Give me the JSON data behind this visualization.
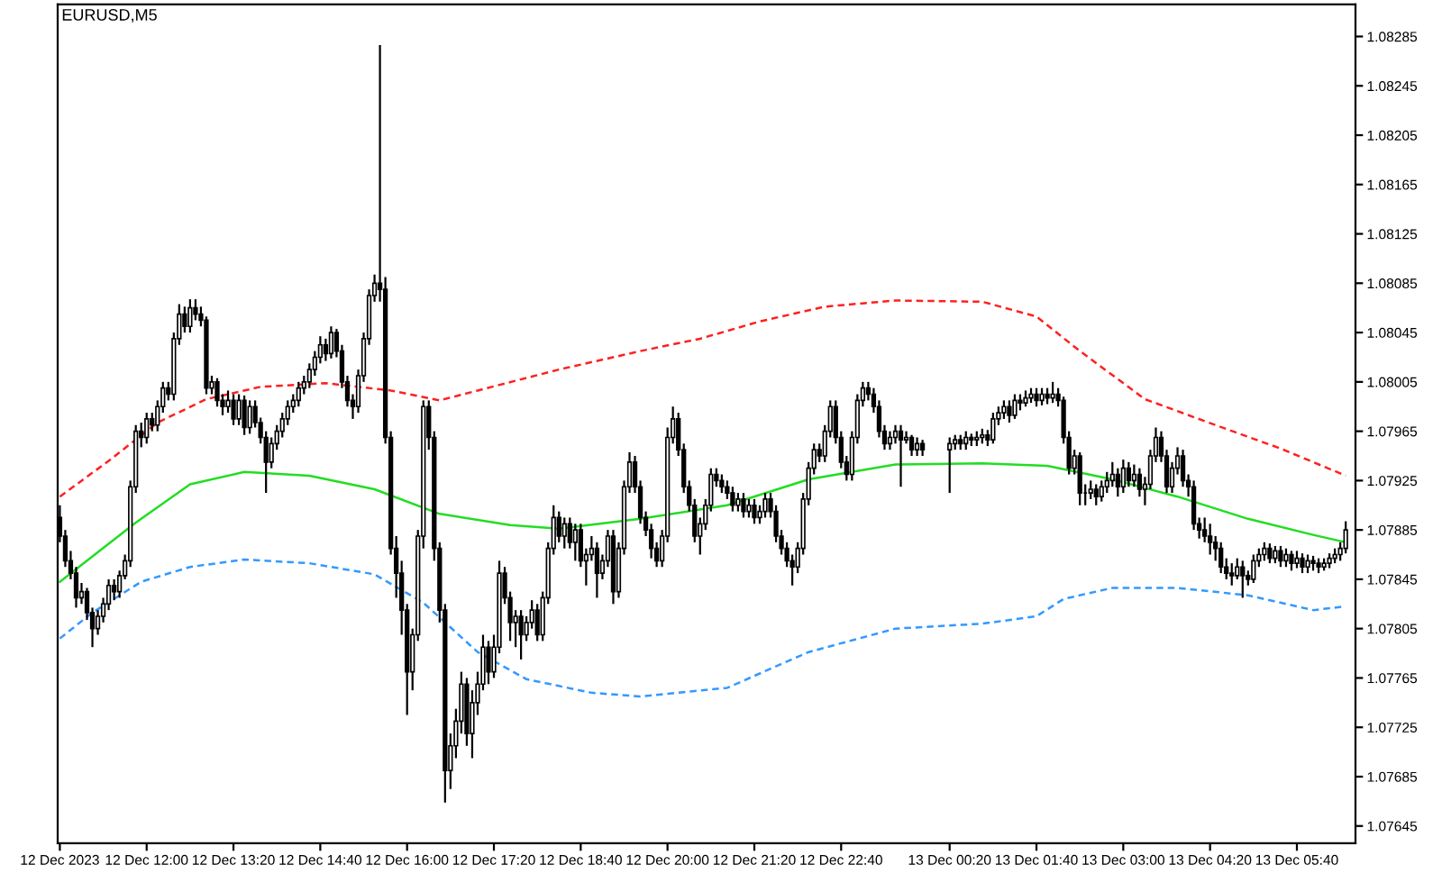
{
  "chart_data": {
    "type": "candlestick",
    "title": "EURUSD,M5",
    "x": [
      "2023-12-12T10:40",
      "2023-12-12T10:45",
      "2023-12-12T10:50",
      "2023-12-12T10:55",
      "2023-12-12T11:00",
      "2023-12-12T11:05",
      "2023-12-12T11:10",
      "2023-12-12T11:15",
      "2023-12-12T11:20",
      "2023-12-12T11:25",
      "2023-12-12T11:30",
      "2023-12-12T11:35",
      "2023-12-12T11:40",
      "2023-12-12T11:45",
      "2023-12-12T11:50",
      "2023-12-12T11:55",
      "2023-12-12T12:00",
      "2023-12-12T12:05",
      "2023-12-12T12:10",
      "2023-12-12T12:15",
      "2023-12-12T12:20",
      "2023-12-12T12:25",
      "2023-12-12T12:30",
      "2023-12-12T12:35",
      "2023-12-12T12:40",
      "2023-12-12T12:45",
      "2023-12-12T12:50",
      "2023-12-12T12:55",
      "2023-12-12T13:00",
      "2023-12-12T13:05",
      "2023-12-12T13:10",
      "2023-12-12T13:15",
      "2023-12-12T13:20",
      "2023-12-12T13:25",
      "2023-12-12T13:30",
      "2023-12-12T13:35",
      "2023-12-12T13:40",
      "2023-12-12T13:45",
      "2023-12-12T13:50",
      "2023-12-12T13:55",
      "2023-12-12T14:00",
      "2023-12-12T14:05",
      "2023-12-12T14:10",
      "2023-12-12T14:15",
      "2023-12-12T14:20",
      "2023-12-12T14:25",
      "2023-12-12T14:30",
      "2023-12-12T14:35",
      "2023-12-12T14:40",
      "2023-12-12T14:45",
      "2023-12-12T14:50",
      "2023-12-12T14:55",
      "2023-12-12T15:00",
      "2023-12-12T15:05",
      "2023-12-12T15:10",
      "2023-12-12T15:15",
      "2023-12-12T15:20",
      "2023-12-12T15:25",
      "2023-12-12T15:30",
      "2023-12-12T15:35",
      "2023-12-12T15:40",
      "2023-12-12T15:45",
      "2023-12-12T15:50",
      "2023-12-12T15:55",
      "2023-12-12T16:00",
      "2023-12-12T16:05",
      "2023-12-12T16:10",
      "2023-12-12T16:15",
      "2023-12-12T16:20",
      "2023-12-12T16:25",
      "2023-12-12T16:30",
      "2023-12-12T16:35",
      "2023-12-12T16:40",
      "2023-12-12T16:45",
      "2023-12-12T16:50",
      "2023-12-12T16:55",
      "2023-12-12T17:00",
      "2023-12-12T17:05",
      "2023-12-12T17:10",
      "2023-12-12T17:15",
      "2023-12-12T17:20",
      "2023-12-12T17:25",
      "2023-12-12T17:30",
      "2023-12-12T17:35",
      "2023-12-12T17:40",
      "2023-12-12T17:45",
      "2023-12-12T17:50",
      "2023-12-12T17:55",
      "2023-12-12T18:00",
      "2023-12-12T18:05",
      "2023-12-12T18:10",
      "2023-12-12T18:15",
      "2023-12-12T18:20",
      "2023-12-12T18:25",
      "2023-12-12T18:30",
      "2023-12-12T18:35",
      "2023-12-12T18:40",
      "2023-12-12T18:45",
      "2023-12-12T18:50",
      "2023-12-12T18:55",
      "2023-12-12T19:00",
      "2023-12-12T19:05",
      "2023-12-12T19:10",
      "2023-12-12T19:15",
      "2023-12-12T19:20",
      "2023-12-12T19:25",
      "2023-12-12T19:30",
      "2023-12-12T19:35",
      "2023-12-12T19:40",
      "2023-12-12T19:45",
      "2023-12-12T19:50",
      "2023-12-12T19:55",
      "2023-12-12T20:00",
      "2023-12-12T20:05",
      "2023-12-12T20:10",
      "2023-12-12T20:15",
      "2023-12-12T20:20",
      "2023-12-12T20:25",
      "2023-12-12T20:30",
      "2023-12-12T20:35",
      "2023-12-12T20:40",
      "2023-12-12T20:45",
      "2023-12-12T20:50",
      "2023-12-12T20:55",
      "2023-12-12T21:00",
      "2023-12-12T21:05",
      "2023-12-12T21:10",
      "2023-12-12T21:15",
      "2023-12-12T21:20",
      "2023-12-12T21:25",
      "2023-12-12T21:30",
      "2023-12-12T21:35",
      "2023-12-12T21:40",
      "2023-12-12T21:45",
      "2023-12-12T21:50",
      "2023-12-12T21:55",
      "2023-12-12T22:00",
      "2023-12-12T22:05",
      "2023-12-12T22:10",
      "2023-12-12T22:15",
      "2023-12-12T22:20",
      "2023-12-12T22:25",
      "2023-12-12T22:30",
      "2023-12-12T22:35",
      "2023-12-12T22:40",
      "2023-12-12T22:45",
      "2023-12-12T22:50",
      "2023-12-12T22:55",
      "2023-12-12T23:00",
      "2023-12-12T23:05",
      "2023-12-12T23:10",
      "2023-12-12T23:15",
      "2023-12-12T23:20",
      "2023-12-12T23:25",
      "2023-12-12T23:30",
      "2023-12-12T23:35",
      "2023-12-12T23:40",
      "2023-12-12T23:45",
      "2023-12-12T23:50",
      "2023-12-12T23:55",
      "2023-12-13T00:20",
      "2023-12-13T00:25",
      "2023-12-13T00:30",
      "2023-12-13T00:35",
      "2023-12-13T00:40",
      "2023-12-13T00:45",
      "2023-12-13T00:50",
      "2023-12-13T00:55",
      "2023-12-13T01:00",
      "2023-12-13T01:05",
      "2023-12-13T01:10",
      "2023-12-13T01:15",
      "2023-12-13T01:20",
      "2023-12-13T01:25",
      "2023-12-13T01:30",
      "2023-12-13T01:35",
      "2023-12-13T01:40",
      "2023-12-13T01:45",
      "2023-12-13T01:50",
      "2023-12-13T01:55",
      "2023-12-13T02:00",
      "2023-12-13T02:05",
      "2023-12-13T02:10",
      "2023-12-13T02:15",
      "2023-12-13T02:20",
      "2023-12-13T02:25",
      "2023-12-13T02:30",
      "2023-12-13T02:35",
      "2023-12-13T02:40",
      "2023-12-13T02:45",
      "2023-12-13T02:50",
      "2023-12-13T02:55",
      "2023-12-13T03:00",
      "2023-12-13T03:05",
      "2023-12-13T03:10",
      "2023-12-13T03:15",
      "2023-12-13T03:20",
      "2023-12-13T03:25",
      "2023-12-13T03:30",
      "2023-12-13T03:35",
      "2023-12-13T03:40",
      "2023-12-13T03:45",
      "2023-12-13T03:50",
      "2023-12-13T03:55",
      "2023-12-13T04:00",
      "2023-12-13T04:05",
      "2023-12-13T04:10",
      "2023-12-13T04:15",
      "2023-12-13T04:20",
      "2023-12-13T04:25",
      "2023-12-13T04:30",
      "2023-12-13T04:35",
      "2023-12-13T04:40",
      "2023-12-13T04:45",
      "2023-12-13T04:50",
      "2023-12-13T04:55",
      "2023-12-13T05:00",
      "2023-12-13T05:05",
      "2023-12-13T05:10",
      "2023-12-13T05:15",
      "2023-12-13T05:20",
      "2023-12-13T05:25",
      "2023-12-13T05:30",
      "2023-12-13T05:35",
      "2023-12-13T05:40",
      "2023-12-13T05:45",
      "2023-12-13T05:50",
      "2023-12-13T05:55",
      "2023-12-13T06:00",
      "2023-12-13T06:05",
      "2023-12-13T06:10",
      "2023-12-13T06:15",
      "2023-12-13T06:20",
      "2023-12-13T06:25"
    ],
    "ohlc": [
      [
        1.07895,
        1.07905,
        1.07875,
        1.0788
      ],
      [
        1.0788,
        1.07885,
        1.07855,
        1.0786
      ],
      [
        1.0786,
        1.07868,
        1.07845,
        1.0785
      ],
      [
        1.0785,
        1.07855,
        1.07822,
        1.0783
      ],
      [
        1.0783,
        1.07842,
        1.07825,
        1.07835
      ],
      [
        1.07835,
        1.07838,
        1.07812,
        1.07818
      ],
      [
        1.07818,
        1.07822,
        1.0779,
        1.07805
      ],
      [
        1.07805,
        1.0782,
        1.078,
        1.07815
      ],
      [
        1.07815,
        1.0783,
        1.0781,
        1.07825
      ],
      [
        1.07825,
        1.07845,
        1.0782,
        1.0784
      ],
      [
        1.0784,
        1.07845,
        1.07828,
        1.07835
      ],
      [
        1.07835,
        1.07852,
        1.0783,
        1.07848
      ],
      [
        1.07848,
        1.07865,
        1.07845,
        1.0786
      ],
      [
        1.0786,
        1.07925,
        1.07855,
        1.0792
      ],
      [
        1.0792,
        1.0797,
        1.07915,
        1.07965
      ],
      [
        1.07965,
        1.07972,
        1.07952,
        1.0796
      ],
      [
        1.0796,
        1.0798,
        1.07955,
        1.07975
      ],
      [
        1.07975,
        1.0798,
        1.07965,
        1.0797
      ],
      [
        1.0797,
        1.0799,
        1.07965,
        1.07985
      ],
      [
        1.07985,
        1.08005,
        1.0798,
        1.08
      ],
      [
        1.08,
        1.08005,
        1.0799,
        1.07995
      ],
      [
        1.07995,
        1.08045,
        1.0799,
        1.0804
      ],
      [
        1.0804,
        1.08068,
        1.08035,
        1.0806
      ],
      [
        1.0806,
        1.08066,
        1.08045,
        1.0805
      ],
      [
        1.0805,
        1.08072,
        1.08045,
        1.08065
      ],
      [
        1.08065,
        1.08072,
        1.08055,
        1.0806
      ],
      [
        1.0806,
        1.08066,
        1.0805,
        1.08055
      ],
      [
        1.08055,
        1.08058,
        1.07995,
        1.08
      ],
      [
        1.08,
        1.0801,
        1.07995,
        1.08005
      ],
      [
        1.08005,
        1.08008,
        1.07985,
        1.0799
      ],
      [
        1.0799,
        1.07995,
        1.07978,
        1.07985
      ],
      [
        1.07985,
        1.07998,
        1.0798,
        1.0799
      ],
      [
        1.0799,
        1.07995,
        1.0797,
        1.07975
      ],
      [
        1.07975,
        1.07995,
        1.0797,
        1.0799
      ],
      [
        1.0799,
        1.07994,
        1.07962,
        1.07968
      ],
      [
        1.07968,
        1.0799,
        1.07963,
        1.07985
      ],
      [
        1.07985,
        1.0799,
        1.07968,
        1.07972
      ],
      [
        1.07972,
        1.07976,
        1.07955,
        1.0796
      ],
      [
        1.0796,
        1.07965,
        1.07915,
        1.0794
      ],
      [
        1.0794,
        1.0796,
        1.07935,
        1.07955
      ],
      [
        1.07955,
        1.0797,
        1.0795,
        1.07965
      ],
      [
        1.07965,
        1.0798,
        1.0796,
        1.07975
      ],
      [
        1.07975,
        1.0799,
        1.0797,
        1.07985
      ],
      [
        1.07985,
        1.07995,
        1.0798,
        1.0799
      ],
      [
        1.0799,
        1.08005,
        1.07985,
        1.08
      ],
      [
        1.08,
        1.0801,
        1.07995,
        1.08005
      ],
      [
        1.08005,
        1.0802,
        1.08,
        1.08015
      ],
      [
        1.08015,
        1.0803,
        1.0801,
        1.08025
      ],
      [
        1.08025,
        1.08042,
        1.0802,
        1.08035
      ],
      [
        1.08035,
        1.0804,
        1.08022,
        1.08028
      ],
      [
        1.08028,
        1.0805,
        1.08024,
        1.08045
      ],
      [
        1.08045,
        1.08048,
        1.08025,
        1.0803
      ],
      [
        1.0803,
        1.08035,
        1.08,
        1.08005
      ],
      [
        1.08005,
        1.0801,
        1.07985,
        1.0799
      ],
      [
        1.0799,
        1.07995,
        1.07975,
        1.07985
      ],
      [
        1.07985,
        1.08015,
        1.0798,
        1.0801
      ],
      [
        1.0801,
        1.08045,
        1.08005,
        1.0804
      ],
      [
        1.0804,
        1.0808,
        1.08035,
        1.08075
      ],
      [
        1.08075,
        1.08092,
        1.0807,
        1.08085
      ],
      [
        1.08085,
        1.08278,
        1.0807,
        1.0808
      ],
      [
        1.0808,
        1.0809,
        1.07955,
        1.0796
      ],
      [
        1.0796,
        1.07965,
        1.07865,
        1.0787
      ],
      [
        1.0787,
        1.0788,
        1.0783,
        1.0785
      ],
      [
        1.0785,
        1.0786,
        1.078,
        1.0782
      ],
      [
        1.0782,
        1.07825,
        1.07735,
        1.0777
      ],
      [
        1.0777,
        1.07805,
        1.07755,
        1.078
      ],
      [
        1.078,
        1.07885,
        1.07795,
        1.0788
      ],
      [
        1.0788,
        1.0799,
        1.0787,
        1.07985
      ],
      [
        1.07985,
        1.0799,
        1.0795,
        1.0796
      ],
      [
        1.0796,
        1.07965,
        1.0786,
        1.0787
      ],
      [
        1.0787,
        1.07875,
        1.0781,
        1.0782
      ],
      [
        1.0782,
        1.07825,
        1.07664,
        1.0769
      ],
      [
        1.0769,
        1.0772,
        1.07675,
        1.0771
      ],
      [
        1.0771,
        1.0774,
        1.077,
        1.0773
      ],
      [
        1.0773,
        1.0777,
        1.0772,
        1.0776
      ],
      [
        1.0776,
        1.07765,
        1.0771,
        1.0772
      ],
      [
        1.0772,
        1.07755,
        1.077,
        1.07745
      ],
      [
        1.07745,
        1.0777,
        1.07735,
        1.0776
      ],
      [
        1.0776,
        1.078,
        1.07755,
        1.0779
      ],
      [
        1.0779,
        1.07795,
        1.0776,
        1.0777
      ],
      [
        1.0777,
        1.078,
        1.07765,
        1.0779
      ],
      [
        1.0779,
        1.0786,
        1.07785,
        1.0785
      ],
      [
        1.0785,
        1.07855,
        1.07825,
        1.0783
      ],
      [
        1.0783,
        1.07835,
        1.07795,
        1.0781
      ],
      [
        1.0781,
        1.0782,
        1.0779,
        1.07815
      ],
      [
        1.07815,
        1.0782,
        1.0778,
        1.078
      ],
      [
        1.078,
        1.07815,
        1.07795,
        1.0781
      ],
      [
        1.0781,
        1.07828,
        1.07805,
        1.0782
      ],
      [
        1.0782,
        1.07825,
        1.07795,
        1.078
      ],
      [
        1.078,
        1.07835,
        1.07795,
        1.0783
      ],
      [
        1.0783,
        1.07875,
        1.07825,
        1.0787
      ],
      [
        1.0787,
        1.07905,
        1.07865,
        1.07895
      ],
      [
        1.07895,
        1.079,
        1.07875,
        1.0788
      ],
      [
        1.0788,
        1.07895,
        1.0787,
        1.0789
      ],
      [
        1.0789,
        1.07895,
        1.0787,
        1.07875
      ],
      [
        1.07875,
        1.0789,
        1.0786,
        1.07885
      ],
      [
        1.07885,
        1.0789,
        1.07855,
        1.0786
      ],
      [
        1.0786,
        1.0787,
        1.0784,
        1.07865
      ],
      [
        1.07865,
        1.0788,
        1.0786,
        1.0787
      ],
      [
        1.0787,
        1.07875,
        1.0783,
        1.0785
      ],
      [
        1.0785,
        1.07865,
        1.07845,
        1.0786
      ],
      [
        1.0786,
        1.07885,
        1.07855,
        1.0788
      ],
      [
        1.0788,
        1.07885,
        1.07825,
        1.07835
      ],
      [
        1.07835,
        1.07875,
        1.0783,
        1.0787
      ],
      [
        1.0787,
        1.07925,
        1.07865,
        1.0792
      ],
      [
        1.0792,
        1.07948,
        1.07915,
        1.0794
      ],
      [
        1.0794,
        1.07945,
        1.07915,
        1.0792
      ],
      [
        1.0792,
        1.07925,
        1.0789,
        1.07895
      ],
      [
        1.07895,
        1.079,
        1.0788,
        1.07885
      ],
      [
        1.07885,
        1.0789,
        1.07862,
        1.0787
      ],
      [
        1.0787,
        1.07875,
        1.07855,
        1.0786
      ],
      [
        1.0786,
        1.07885,
        1.07855,
        1.0788
      ],
      [
        1.0788,
        1.07968,
        1.07875,
        1.0796
      ],
      [
        1.0796,
        1.07985,
        1.07955,
        1.07975
      ],
      [
        1.07975,
        1.0798,
        1.07945,
        1.0795
      ],
      [
        1.0795,
        1.07955,
        1.07915,
        1.0792
      ],
      [
        1.0792,
        1.07925,
        1.079,
        1.07905
      ],
      [
        1.07905,
        1.0791,
        1.07875,
        1.0788
      ],
      [
        1.0788,
        1.07895,
        1.07865,
        1.0789
      ],
      [
        1.0789,
        1.0791,
        1.07885,
        1.07905
      ],
      [
        1.07905,
        1.07935,
        1.079,
        1.0793
      ],
      [
        1.0793,
        1.07935,
        1.0792,
        1.07925
      ],
      [
        1.07925,
        1.0793,
        1.07915,
        1.0792
      ],
      [
        1.0792,
        1.07925,
        1.0791,
        1.07915
      ],
      [
        1.07915,
        1.0792,
        1.079,
        1.07905
      ],
      [
        1.07905,
        1.07915,
        1.079,
        1.0791
      ],
      [
        1.0791,
        1.07915,
        1.07895,
        1.079
      ],
      [
        1.079,
        1.0791,
        1.07895,
        1.07905
      ],
      [
        1.07905,
        1.0791,
        1.0789,
        1.07895
      ],
      [
        1.07895,
        1.07905,
        1.0789,
        1.079
      ],
      [
        1.079,
        1.07915,
        1.07895,
        1.0791
      ],
      [
        1.0791,
        1.07915,
        1.07895,
        1.079
      ],
      [
        1.079,
        1.07905,
        1.07875,
        1.0788
      ],
      [
        1.0788,
        1.07885,
        1.07865,
        1.0787
      ],
      [
        1.0787,
        1.07875,
        1.07855,
        1.0786
      ],
      [
        1.0786,
        1.07865,
        1.0784,
        1.07855
      ],
      [
        1.07855,
        1.07875,
        1.0785,
        1.0787
      ],
      [
        1.0787,
        1.07915,
        1.07865,
        1.0791
      ],
      [
        1.0791,
        1.0794,
        1.07905,
        1.07935
      ],
      [
        1.07935,
        1.07955,
        1.0793,
        1.0795
      ],
      [
        1.0795,
        1.07955,
        1.0794,
        1.07945
      ],
      [
        1.07945,
        1.0797,
        1.0794,
        1.07965
      ],
      [
        1.07965,
        1.0799,
        1.0796,
        1.07985
      ],
      [
        1.07985,
        1.0799,
        1.07955,
        1.0796
      ],
      [
        1.0796,
        1.07965,
        1.07935,
        1.0794
      ],
      [
        1.0794,
        1.07945,
        1.07925,
        1.0793
      ],
      [
        1.0793,
        1.07965,
        1.07925,
        1.0796
      ],
      [
        1.0796,
        1.07995,
        1.07955,
        1.0799
      ],
      [
        1.0799,
        1.08005,
        1.07985,
        1.08
      ],
      [
        1.08,
        1.08005,
        1.0799,
        1.07995
      ],
      [
        1.07995,
        1.08,
        1.0798,
        1.07985
      ],
      [
        1.07985,
        1.0799,
        1.0796,
        1.07965
      ],
      [
        1.07965,
        1.0797,
        1.0795,
        1.07955
      ],
      [
        1.07955,
        1.07965,
        1.0795,
        1.0796
      ],
      [
        1.0796,
        1.0797,
        1.07955,
        1.07965
      ],
      [
        1.07965,
        1.0797,
        1.0792,
        1.07958
      ],
      [
        1.07958,
        1.07965,
        1.07955,
        1.0796
      ],
      [
        1.0796,
        1.07962,
        1.07945,
        1.0795
      ],
      [
        1.0795,
        1.0796,
        1.07945,
        1.07955
      ],
      [
        1.07955,
        1.07958,
        1.07945,
        1.0795
      ],
      [
        1.0795,
        1.0796,
        1.07915,
        1.07955
      ],
      [
        1.07955,
        1.07962,
        1.0795,
        1.07958
      ],
      [
        1.07958,
        1.07962,
        1.0795,
        1.07955
      ],
      [
        1.07955,
        1.07965,
        1.0795,
        1.0796
      ],
      [
        1.0796,
        1.07963,
        1.07953,
        1.07958
      ],
      [
        1.07958,
        1.07965,
        1.07953,
        1.0796
      ],
      [
        1.0796,
        1.07967,
        1.07955,
        1.07962
      ],
      [
        1.07962,
        1.07966,
        1.07953,
        1.07958
      ],
      [
        1.07958,
        1.0798,
        1.07955,
        1.07975
      ],
      [
        1.07975,
        1.07985,
        1.0797,
        1.0798
      ],
      [
        1.0798,
        1.0799,
        1.07975,
        1.07985
      ],
      [
        1.07985,
        1.0799,
        1.07972,
        1.07978
      ],
      [
        1.07978,
        1.07995,
        1.07975,
        1.0799
      ],
      [
        1.0799,
        1.07995,
        1.07982,
        1.07988
      ],
      [
        1.07988,
        1.07998,
        1.07985,
        1.07992
      ],
      [
        1.07992,
        1.08,
        1.07988,
        1.07995
      ],
      [
        1.07995,
        1.08,
        1.07985,
        1.0799
      ],
      [
        1.0799,
        1.08,
        1.07986,
        1.07995
      ],
      [
        1.07995,
        1.08,
        1.07987,
        1.07992
      ],
      [
        1.07992,
        1.08005,
        1.07988,
        1.07995
      ],
      [
        1.07995,
        1.08,
        1.07985,
        1.0799
      ],
      [
        1.0799,
        1.07993,
        1.07955,
        1.0796
      ],
      [
        1.0796,
        1.07965,
        1.0793,
        1.07935
      ],
      [
        1.07935,
        1.0795,
        1.0793,
        1.07945
      ],
      [
        1.07945,
        1.07948,
        1.07905,
        1.07915
      ],
      [
        1.07915,
        1.07922,
        1.07905,
        1.07915
      ],
      [
        1.07915,
        1.07925,
        1.0791,
        1.07918
      ],
      [
        1.07918,
        1.07922,
        1.07905,
        1.07912
      ],
      [
        1.07912,
        1.07925,
        1.07908,
        1.0792
      ],
      [
        1.0792,
        1.07932,
        1.07915,
        1.07925
      ],
      [
        1.07925,
        1.0794,
        1.0792,
        1.0793
      ],
      [
        1.0793,
        1.07935,
        1.07912,
        1.0792
      ],
      [
        1.0792,
        1.07942,
        1.07915,
        1.07935
      ],
      [
        1.07935,
        1.0794,
        1.0792,
        1.07925
      ],
      [
        1.07925,
        1.07938,
        1.0792,
        1.0793
      ],
      [
        1.0793,
        1.07935,
        1.07912,
        1.07918
      ],
      [
        1.07918,
        1.07928,
        1.07905,
        1.07922
      ],
      [
        1.07922,
        1.0795,
        1.07918,
        1.07945
      ],
      [
        1.07945,
        1.07968,
        1.0794,
        1.0796
      ],
      [
        1.0796,
        1.07965,
        1.0794,
        1.07945
      ],
      [
        1.07945,
        1.0795,
        1.07915,
        1.0792
      ],
      [
        1.0792,
        1.0794,
        1.07915,
        1.07935
      ],
      [
        1.07935,
        1.07952,
        1.0793,
        1.07945
      ],
      [
        1.07945,
        1.0795,
        1.0792,
        1.07925
      ],
      [
        1.07925,
        1.0793,
        1.07912,
        1.0792
      ],
      [
        1.0792,
        1.07925,
        1.07885,
        1.0789
      ],
      [
        1.0789,
        1.07895,
        1.07878,
        1.07885
      ],
      [
        1.07885,
        1.07895,
        1.07875,
        1.0788
      ],
      [
        1.0788,
        1.0789,
        1.07865,
        1.07875
      ],
      [
        1.07875,
        1.0788,
        1.0786,
        1.0787
      ],
      [
        1.0787,
        1.07875,
        1.0785,
        1.07855
      ],
      [
        1.07855,
        1.07862,
        1.07845,
        1.0785
      ],
      [
        1.0785,
        1.07858,
        1.0784,
        1.07848
      ],
      [
        1.07848,
        1.07862,
        1.07845,
        1.07855
      ],
      [
        1.07855,
        1.0786,
        1.0783,
        1.07848
      ],
      [
        1.07848,
        1.07852,
        1.0784,
        1.07845
      ],
      [
        1.07845,
        1.07865,
        1.07842,
        1.0786
      ],
      [
        1.0786,
        1.0787,
        1.07855,
        1.07865
      ],
      [
        1.07865,
        1.07875,
        1.0786,
        1.0787
      ],
      [
        1.0787,
        1.07874,
        1.07858,
        1.07862
      ],
      [
        1.07862,
        1.07872,
        1.07858,
        1.07868
      ],
      [
        1.07868,
        1.07872,
        1.07855,
        1.0786
      ],
      [
        1.0786,
        1.0787,
        1.07855,
        1.07865
      ],
      [
        1.07865,
        1.07868,
        1.07852,
        1.07858
      ],
      [
        1.07858,
        1.07868,
        1.07854,
        1.07862
      ],
      [
        1.07862,
        1.07866,
        1.0785,
        1.07855
      ],
      [
        1.07855,
        1.07865,
        1.0785,
        1.0786
      ],
      [
        1.0786,
        1.07864,
        1.07852,
        1.07858
      ],
      [
        1.07858,
        1.07862,
        1.0785,
        1.07855
      ],
      [
        1.07855,
        1.07862,
        1.07852,
        1.07858
      ],
      [
        1.07858,
        1.07866,
        1.07854,
        1.07862
      ],
      [
        1.07862,
        1.0787,
        1.07858,
        1.07865
      ],
      [
        1.07865,
        1.07875,
        1.0786,
        1.0787
      ],
      [
        1.0787,
        1.07892,
        1.07866,
        1.07885
      ]
    ],
    "series": [
      {
        "type": "line",
        "color": "#ff2020",
        "line_style": "dashed",
        "x": [
          "2023-12-12T10:40",
          "2023-12-12T11:25",
          "2023-12-12T12:10",
          "2023-12-12T12:55",
          "2023-12-12T13:45",
          "2023-12-12T14:45",
          "2023-12-12T15:45",
          "2023-12-12T16:30",
          "2023-12-12T17:05",
          "2023-12-12T18:20",
          "2023-12-12T19:35",
          "2023-12-12T20:30",
          "2023-12-12T21:25",
          "2023-12-12T22:25",
          "2023-12-12T23:30",
          "2023-12-13T00:50",
          "2023-12-13T01:40",
          "2023-12-13T02:20",
          "2023-12-13T03:20",
          "2023-12-13T04:25",
          "2023-12-13T05:25",
          "2023-12-13T06:25"
        ],
        "values": [
          1.07912,
          1.07941,
          1.07972,
          1.07991,
          1.08001,
          1.08004,
          1.07998,
          1.0799,
          1.07998,
          1.08015,
          1.0803,
          1.0804,
          1.08054,
          1.08066,
          1.08071,
          1.0807,
          1.08058,
          1.0803,
          1.07991,
          1.0797,
          1.07951,
          1.07929
        ]
      },
      {
        "type": "line",
        "color": "#22dd22",
        "line_style": "solid",
        "x": [
          "2023-12-12T10:40",
          "2023-12-12T11:50",
          "2023-12-12T12:40",
          "2023-12-12T13:30",
          "2023-12-12T14:30",
          "2023-12-12T15:30",
          "2023-12-12T16:30",
          "2023-12-12T17:35",
          "2023-12-12T18:20",
          "2023-12-12T19:35",
          "2023-12-12T20:55",
          "2023-12-12T22:10",
          "2023-12-12T23:30",
          "2023-12-13T00:50",
          "2023-12-13T01:50",
          "2023-12-13T02:50",
          "2023-12-13T03:50",
          "2023-12-13T04:55",
          "2023-12-13T05:55",
          "2023-12-13T06:25"
        ],
        "values": [
          1.07843,
          1.07891,
          1.07922,
          1.07932,
          1.07929,
          1.07918,
          1.07898,
          1.07889,
          1.07886,
          1.07894,
          1.07905,
          1.07926,
          1.07938,
          1.07939,
          1.07937,
          1.07926,
          1.07912,
          1.07894,
          1.07881,
          1.07875
        ]
      },
      {
        "type": "line",
        "color": "#3399ff",
        "line_style": "dashed",
        "x": [
          "2023-12-12T10:40",
          "2023-12-12T11:10",
          "2023-12-12T11:55",
          "2023-12-12T12:40",
          "2023-12-12T13:30",
          "2023-12-12T14:30",
          "2023-12-12T15:30",
          "2023-12-12T16:15",
          "2023-12-12T17:05",
          "2023-12-12T17:50",
          "2023-12-12T18:50",
          "2023-12-12T19:35",
          "2023-12-12T20:55",
          "2023-12-12T22:10",
          "2023-12-12T23:30",
          "2023-12-13T00:50",
          "2023-12-13T01:40",
          "2023-12-13T02:05",
          "2023-12-13T02:50",
          "2023-12-13T03:50",
          "2023-12-13T04:55",
          "2023-12-13T05:55",
          "2023-12-13T06:25"
        ],
        "values": [
          1.07797,
          1.07818,
          1.07843,
          1.07855,
          1.07861,
          1.07858,
          1.07849,
          1.07826,
          1.07786,
          1.07764,
          1.07753,
          1.0775,
          1.07757,
          1.07786,
          1.07805,
          1.07809,
          1.07815,
          1.07829,
          1.07838,
          1.07838,
          1.07832,
          1.0782,
          1.07823
        ]
      }
    ],
    "xlim": [
      "2023-12-12T10:38",
      "2023-12-13T06:34"
    ],
    "xticks": [
      {
        "value": "2023-12-12T10:40",
        "label": "12 Dec 2023"
      },
      {
        "value": "2023-12-12T12:00",
        "label": "12 Dec 12:00"
      },
      {
        "value": "2023-12-12T13:20",
        "label": "12 Dec 13:20"
      },
      {
        "value": "2023-12-12T14:40",
        "label": "12 Dec 14:40"
      },
      {
        "value": "2023-12-12T16:00",
        "label": "12 Dec 16:00"
      },
      {
        "value": "2023-12-12T17:20",
        "label": "12 Dec 17:20"
      },
      {
        "value": "2023-12-12T18:40",
        "label": "12 Dec 18:40"
      },
      {
        "value": "2023-12-12T20:00",
        "label": "12 Dec 20:00"
      },
      {
        "value": "2023-12-12T21:20",
        "label": "12 Dec 21:20"
      },
      {
        "value": "2023-12-12T22:40",
        "label": "12 Dec 22:40"
      },
      {
        "value": "2023-12-13T00:20",
        "label": "13 Dec 00:20"
      },
      {
        "value": "2023-12-13T01:40",
        "label": "13 Dec 01:40"
      },
      {
        "value": "2023-12-13T03:00",
        "label": "13 Dec 03:00"
      },
      {
        "value": "2023-12-13T04:20",
        "label": "13 Dec 04:20"
      },
      {
        "value": "2023-12-13T05:40",
        "label": "13 Dec 05:40"
      }
    ],
    "ylim": [
      1.07631,
      1.08311
    ],
    "yticks": [
      1.07645,
      1.07685,
      1.07725,
      1.07765,
      1.07805,
      1.07845,
      1.07885,
      1.07925,
      1.07965,
      1.08005,
      1.08045,
      1.08085,
      1.08125,
      1.08165,
      1.08205,
      1.08245,
      1.08285
    ],
    "grid": false
  }
}
